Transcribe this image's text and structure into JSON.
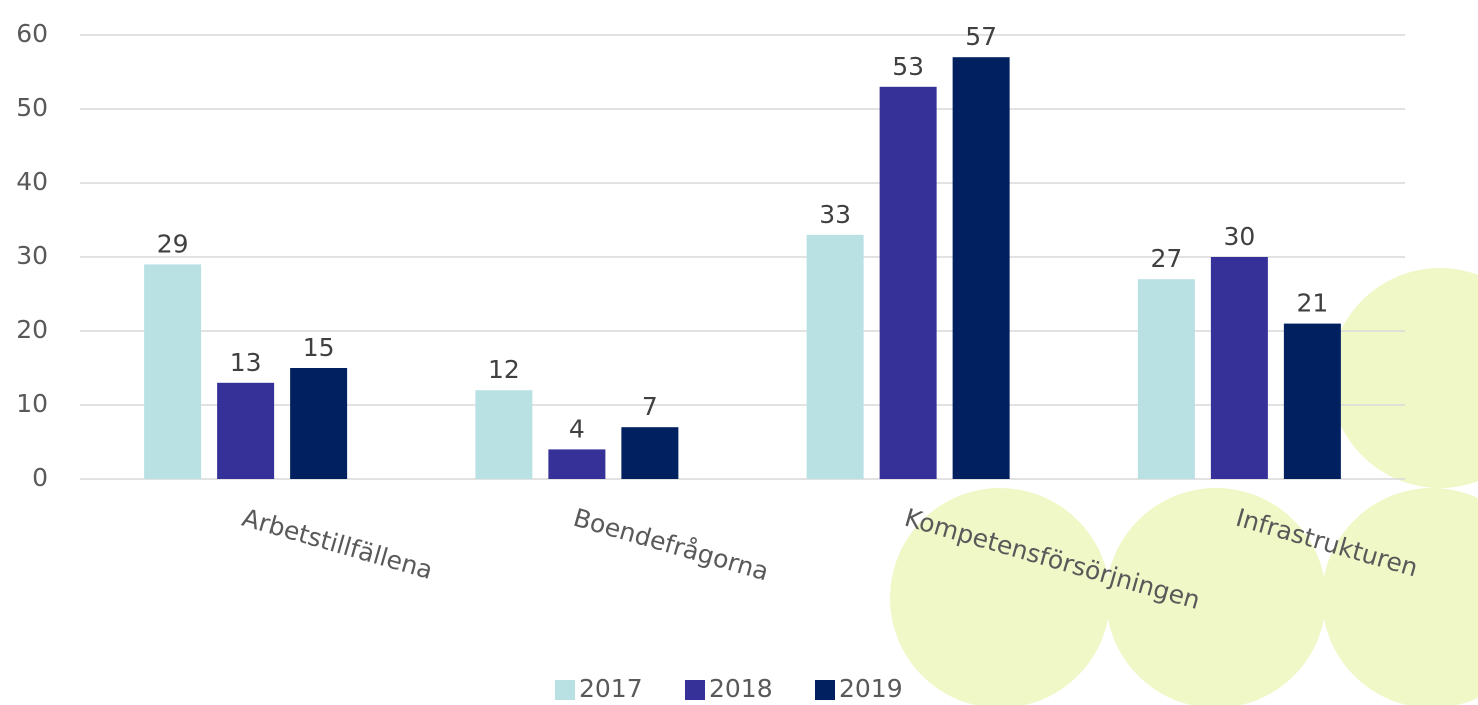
{
  "chart_data": {
    "type": "bar",
    "categories": [
      "Arbetstillfällena",
      "Boendefrågorna",
      "Kompetensförsörjningen",
      "Infrastrukturen"
    ],
    "series": [
      {
        "name": "2017",
        "color": "#b9e0e3",
        "values": [
          29,
          12,
          33,
          27
        ]
      },
      {
        "name": "2018",
        "color": "#353199",
        "values": [
          13,
          4,
          53,
          30
        ]
      },
      {
        "name": "2019",
        "color": "#00205f",
        "values": [
          15,
          7,
          57,
          21
        ]
      }
    ],
    "ylim": [
      0,
      60
    ],
    "yticks": [
      0,
      10,
      20,
      30,
      40,
      50,
      60
    ],
    "grid": true,
    "legend": "bottom"
  }
}
